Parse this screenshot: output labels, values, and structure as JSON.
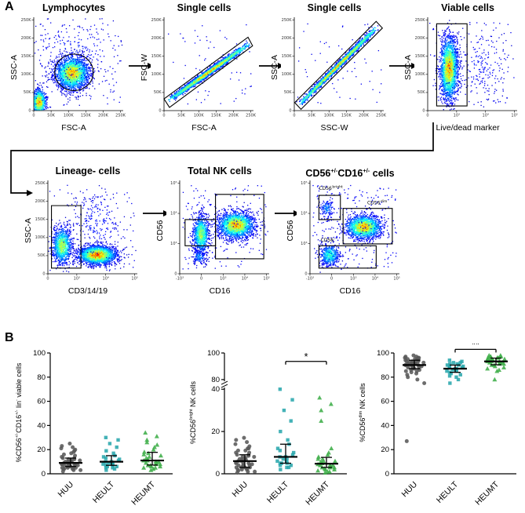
{
  "panelA": {
    "label": "A"
  },
  "panelB": {
    "label": "B"
  },
  "chart_data": {
    "flow_plots": [
      {
        "type": "scatter",
        "population": "Lymphocytes",
        "title": [
          {
            "t": "Lymphocytes"
          }
        ],
        "xlabel": "FSC-A",
        "ylabel": "SSC-A",
        "xticks": [
          "0",
          "50K",
          "100K",
          "150K",
          "200K",
          "250K"
        ],
        "yticks": [
          "0",
          "50K",
          "100K",
          "150K",
          "200K",
          "250K"
        ],
        "clusters": [
          {
            "cx": 0.06,
            "cy": 0.09,
            "sx": 0.04,
            "sy": 0.07,
            "n": 900,
            "peak": 1.0
          },
          {
            "cx": 0.43,
            "cy": 0.4,
            "sx": 0.095,
            "sy": 0.09,
            "n": 2100,
            "peak": 0.95
          },
          {
            "cx": 0.45,
            "cy": 0.6,
            "sx": 0.3,
            "sy": 0.22,
            "n": 260,
            "peak": 0.12
          },
          {
            "kind": "uniform",
            "x0": 0.02,
            "y0": 0.05,
            "x1": 0.98,
            "y1": 0.95,
            "n": 120,
            "peak": 0.05
          }
        ],
        "gates": [
          {
            "shape": "ellipse",
            "cx": 0.45,
            "cy": 0.41,
            "rx": 0.215,
            "ry": 0.195
          }
        ],
        "gate_labels": []
      },
      {
        "type": "scatter",
        "population": "Single cells",
        "title": [
          {
            "t": "Single cells"
          }
        ],
        "xlabel": "FSC-A",
        "ylabel": "FSC-W",
        "xticks": [
          "0",
          "50K",
          "100K",
          "150K",
          "200K",
          "250K"
        ],
        "yticks": [
          "0",
          "50K",
          "100K",
          "150K",
          "200K",
          "250K"
        ],
        "clusters": [
          {
            "kind": "diag",
            "x0": 0.04,
            "y0": 0.1,
            "x1": 0.96,
            "y1": 0.72,
            "w": 0.016,
            "n": 2600,
            "peak": 1.0
          },
          {
            "kind": "uniform",
            "x0": 0.02,
            "y0": 0.05,
            "x1": 0.98,
            "y1": 0.95,
            "n": 60,
            "peak": 0.05
          }
        ],
        "gates": [
          {
            "shape": "poly",
            "pts": [
              [
                0.0,
                0.126
              ],
              [
                0.939,
                0.786
              ],
              [
                0.99,
                0.694
              ],
              [
                0.061,
                0.034
              ]
            ]
          }
        ],
        "gate_labels": []
      },
      {
        "type": "scatter",
        "population": "Single cells",
        "title": [
          {
            "t": "Single cells"
          }
        ],
        "xlabel": "SSC-W",
        "ylabel": "SSC-A",
        "xticks": [
          "0",
          "50K",
          "100K",
          "150K",
          "200K",
          "250K"
        ],
        "yticks": [
          "0",
          "50K",
          "100K",
          "150K",
          "200K",
          "250K"
        ],
        "clusters": [
          {
            "kind": "diag",
            "x0": 0.05,
            "y0": 0.06,
            "x1": 0.93,
            "y1": 0.9,
            "w": 0.014,
            "n": 2600,
            "peak": 1.0
          },
          {
            "kind": "uniform",
            "x0": 0.02,
            "y0": 0.05,
            "x1": 0.98,
            "y1": 0.95,
            "n": 60,
            "peak": 0.05
          }
        ],
        "gates": [
          {
            "shape": "poly",
            "pts": [
              [
                0.005,
                0.086
              ],
              [
                0.915,
                0.956
              ],
              [
                0.985,
                0.884
              ],
              [
                0.075,
                0.014
              ]
            ]
          }
        ],
        "gate_labels": []
      },
      {
        "type": "scatter",
        "population": "Viable cells",
        "title": [
          {
            "t": "Viable cells"
          }
        ],
        "xlabel": "Live/dead marker",
        "ylabel": "SSC-A",
        "xticks": [
          "0",
          "10³",
          "10⁴",
          "10⁵"
        ],
        "yticks": [
          "0",
          "50K",
          "100K",
          "150K",
          "200K",
          "250K"
        ],
        "clusters": [
          {
            "cx": 0.24,
            "cy": 0.45,
            "sx": 0.05,
            "sy": 0.17,
            "n": 2200,
            "peak": 1.0
          },
          {
            "cx": 0.6,
            "cy": 0.5,
            "sx": 0.17,
            "sy": 0.2,
            "n": 200,
            "peak": 0.1
          },
          {
            "kind": "uniform",
            "x0": 0.02,
            "y0": 0.05,
            "x1": 0.98,
            "y1": 0.95,
            "n": 80,
            "peak": 0.05
          }
        ],
        "gates": [
          {
            "shape": "rect",
            "x0": 0.1,
            "y0": 0.05,
            "x1": 0.44,
            "y1": 0.93
          }
        ],
        "gate_labels": []
      },
      {
        "type": "scatter",
        "population": "Lineage- cells",
        "title": [
          {
            "t": "Lineage- cells"
          }
        ],
        "xlabel": "CD3/14/19",
        "ylabel": "SSC-A",
        "xticks": [
          "0",
          "10³",
          "10⁴",
          "10⁵"
        ],
        "yticks": [
          "0",
          "50K",
          "100K",
          "150K",
          "200K",
          "250K"
        ],
        "clusters": [
          {
            "cx": 0.16,
            "cy": 0.3,
            "sx": 0.055,
            "sy": 0.1,
            "n": 1000,
            "peak": 0.75
          },
          {
            "cx": 0.55,
            "cy": 0.2,
            "sx": 0.105,
            "sy": 0.05,
            "n": 2300,
            "peak": 1.1
          },
          {
            "cx": 0.55,
            "cy": 0.55,
            "sx": 0.15,
            "sy": 0.18,
            "n": 220,
            "peak": 0.12
          },
          {
            "kind": "uniform",
            "x0": 0.02,
            "y0": 0.05,
            "x1": 0.98,
            "y1": 0.95,
            "n": 80,
            "peak": 0.05
          }
        ],
        "gates": [
          {
            "shape": "rect",
            "x0": 0.04,
            "y0": 0.06,
            "x1": 0.37,
            "y1": 0.73
          }
        ],
        "gate_labels": []
      },
      {
        "type": "scatter",
        "population": "Total NK cells",
        "title": [
          {
            "t": "Total NK cells"
          }
        ],
        "xlabel": "CD16",
        "ylabel": "CD56",
        "xticks": [
          "-10³",
          "0",
          "10³",
          "10⁴",
          "10⁵"
        ],
        "yticks": [
          "0",
          "10³",
          "10⁴",
          "10⁵"
        ],
        "clusters": [
          {
            "cx": 0.24,
            "cy": 0.42,
            "sx": 0.045,
            "sy": 0.1,
            "n": 900,
            "peak": 0.75
          },
          {
            "cx": 0.63,
            "cy": 0.52,
            "sx": 0.1,
            "sy": 0.07,
            "n": 1900,
            "peak": 1.0
          },
          {
            "cx": 0.22,
            "cy": 0.18,
            "sx": 0.04,
            "sy": 0.04,
            "n": 150,
            "peak": 0.3
          },
          {
            "kind": "uniform",
            "x0": 0.03,
            "y0": 0.05,
            "x1": 0.97,
            "y1": 0.95,
            "n": 200,
            "peak": 0.06
          }
        ],
        "gates": [
          {
            "shape": "rect",
            "x0": 0.4,
            "y0": 0.16,
            "x1": 0.94,
            "y1": 0.85
          },
          {
            "shape": "rect",
            "x0": 0.06,
            "y0": 0.3,
            "x1": 0.4,
            "y1": 0.58
          }
        ],
        "gate_labels": []
      },
      {
        "type": "scatter",
        "population": "CD56+/-CD16+/- cells",
        "title": [
          {
            "t": "CD56"
          },
          {
            "s": "+/-"
          },
          {
            "t": "CD16"
          },
          {
            "s": "+/-"
          },
          {
            "t": " cells"
          }
        ],
        "xlabel": "CD16",
        "ylabel": "CD56",
        "xticks": [
          "-10³",
          "0",
          "10³",
          "10⁴",
          "10⁵"
        ],
        "yticks": [
          "0",
          "10³",
          "10⁴",
          "10⁵"
        ],
        "clusters": [
          {
            "cx": 0.6,
            "cy": 0.5,
            "sx": 0.1,
            "sy": 0.062,
            "n": 1700,
            "peak": 1.0
          },
          {
            "cx": 0.22,
            "cy": 0.2,
            "sx": 0.055,
            "sy": 0.06,
            "n": 500,
            "peak": 0.55
          },
          {
            "cx": 0.19,
            "cy": 0.7,
            "sx": 0.04,
            "sy": 0.05,
            "n": 130,
            "peak": 0.3
          },
          {
            "kind": "uniform",
            "x0": 0.03,
            "y0": 0.05,
            "x1": 0.97,
            "y1": 0.95,
            "n": 250,
            "peak": 0.06
          }
        ],
        "gates": [
          {
            "shape": "rect",
            "x0": 0.1,
            "y0": 0.58,
            "x1": 0.34,
            "y1": 0.84
          },
          {
            "shape": "rect",
            "x0": 0.37,
            "y0": 0.32,
            "x1": 0.92,
            "y1": 0.7
          },
          {
            "shape": "rect",
            "x0": 0.1,
            "y0": 0.06,
            "x1": 0.74,
            "y1": 0.3
          }
        ],
        "gate_labels": [
          {
            "x": 0.1,
            "y": 0.9,
            "text": "CD56",
            "sup": "bright"
          },
          {
            "x": 0.64,
            "y": 0.745,
            "text": "CD56",
            "sup": "dim"
          },
          {
            "x": 0.12,
            "y": 0.345,
            "text": "CD56",
            "sup": "-"
          }
        ]
      }
    ],
    "dot_plots": [
      {
        "type": "scatter",
        "ylabel": [
          {
            "t": "%CD56"
          },
          {
            "s": "+/-"
          },
          {
            "t": "CD16"
          },
          {
            "s": "+/-"
          },
          {
            "t": " lin"
          },
          {
            "s": "-"
          },
          {
            "t": " viable cells"
          }
        ],
        "groups": [
          "HUU",
          "HEULT",
          "HEUMT"
        ],
        "markers": [
          "circle",
          "square",
          "triangle"
        ],
        "colors": [
          "#595959",
          "#2aa7ad",
          "#3fae49"
        ],
        "summary": "median-iqr",
        "ylim": [
          0,
          100
        ],
        "yticks": [
          0,
          20,
          40,
          60,
          80,
          100
        ],
        "series": [
          {
            "name": "HUU",
            "values": [
              2,
              3,
              3,
              4,
              4,
              4,
              5,
              5,
              5,
              5,
              6,
              6,
              6,
              6,
              7,
              7,
              7,
              7,
              8,
              8,
              8,
              8,
              9,
              9,
              9,
              10,
              10,
              10,
              11,
              11,
              12,
              12,
              13,
              13,
              14,
              15,
              16,
              17,
              18,
              19,
              20,
              21,
              22,
              23,
              25
            ]
          },
          {
            "name": "HEULT",
            "values": [
              3,
              4,
              5,
              5,
              6,
              6,
              7,
              7,
              8,
              8,
              9,
              9,
              10,
              10,
              11,
              12,
              13,
              14,
              15,
              17,
              19,
              22,
              25,
              28,
              30
            ]
          },
          {
            "name": "HEUMT",
            "values": [
              3,
              4,
              5,
              5,
              6,
              6,
              7,
              7,
              8,
              8,
              9,
              9,
              10,
              10,
              11,
              11,
              12,
              13,
              14,
              15,
              16,
              17,
              18,
              20,
              22,
              24,
              26,
              28,
              31,
              34
            ]
          }
        ],
        "sig": []
      },
      {
        "type": "scatter",
        "ylabel": [
          {
            "t": "%CD56"
          },
          {
            "s": "bright"
          },
          {
            "t": " NK cells"
          }
        ],
        "groups": [
          "HUU",
          "HEULT",
          "HEUMT"
        ],
        "markers": [
          "circle",
          "square",
          "triangle"
        ],
        "colors": [
          "#595959",
          "#2aa7ad",
          "#3fae49"
        ],
        "summary": "median-iqr",
        "ylim": [
          0,
          100
        ],
        "yticks": [
          0,
          20,
          40,
          80,
          100
        ],
        "break": {
          "low": 40,
          "high": 80,
          "lowFrac": 0.7,
          "highFrac": 0.78
        },
        "series": [
          {
            "name": "HUU",
            "values": [
              0.5,
              1,
              1,
              1.5,
              2,
              2,
              2,
              2.5,
              3,
              3,
              3,
              3,
              3.5,
              4,
              4,
              4,
              4,
              4.5,
              5,
              5,
              5,
              5.5,
              6,
              6,
              6,
              6.5,
              7,
              7,
              7.5,
              8,
              8,
              8.5,
              9,
              9,
              10,
              10,
              11,
              11,
              12,
              12,
              13,
              14,
              15,
              16,
              17
            ]
          },
          {
            "name": "HEULT",
            "values": [
              2,
              3,
              3,
              4,
              4,
              5,
              5,
              5,
              6,
              6,
              7,
              7,
              8,
              8,
              9,
              10,
              11,
              12,
              14,
              16,
              20,
              25,
              30,
              35,
              40
            ]
          },
          {
            "name": "HEUMT",
            "values": [
              0.5,
              1,
              1,
              1.5,
              2,
              2,
              2.5,
              3,
              3,
              3,
              3.5,
              4,
              4,
              4,
              4.5,
              5,
              5,
              5.5,
              6,
              6,
              7,
              7,
              8,
              9,
              10,
              12,
              25,
              30,
              33,
              36
            ]
          }
        ],
        "sig": [
          {
            "a": 1,
            "b": 2,
            "label": "*",
            "yfrac": 0.93
          }
        ]
      },
      {
        "type": "scatter",
        "ylabel": [
          {
            "t": "%CD56"
          },
          {
            "s": "dim"
          },
          {
            "t": " NK cells"
          }
        ],
        "groups": [
          "HUU",
          "HEULT",
          "HEUMT"
        ],
        "markers": [
          "circle",
          "square",
          "triangle"
        ],
        "colors": [
          "#595959",
          "#2aa7ad",
          "#3fae49"
        ],
        "summary": "median-iqr",
        "ylim": [
          0,
          100
        ],
        "yticks": [
          0,
          20,
          40,
          60,
          80,
          100
        ],
        "series": [
          {
            "name": "HUU",
            "values": [
              27,
              75,
              78,
              80,
              82,
              83,
              84,
              85,
              85,
              86,
              86,
              87,
              87,
              88,
              88,
              88,
              89,
              89,
              89,
              90,
              90,
              90,
              90,
              91,
              91,
              91,
              92,
              92,
              92,
              92,
              93,
              93,
              93,
              94,
              94,
              94,
              95,
              95,
              95,
              96,
              96,
              96,
              97,
              97,
              98
            ]
          },
          {
            "name": "HEULT",
            "values": [
              75,
              78,
              80,
              81,
              82,
              83,
              84,
              85,
              85,
              86,
              86,
              87,
              87,
              88,
              88,
              89,
              89,
              90,
              90,
              91,
              91,
              92,
              92,
              93,
              94
            ]
          },
          {
            "name": "HEUMT",
            "values": [
              78,
              85,
              86,
              87,
              88,
              89,
              90,
              90,
              91,
              91,
              92,
              92,
              92,
              93,
              93,
              93,
              94,
              94,
              94,
              95,
              95,
              95,
              96,
              96,
              96,
              97,
              97,
              97,
              98,
              98
            ]
          }
        ],
        "sig": [
          {
            "a": 1,
            "b": 2,
            "label": "**",
            "yfrac": 1.03
          }
        ]
      }
    ]
  }
}
